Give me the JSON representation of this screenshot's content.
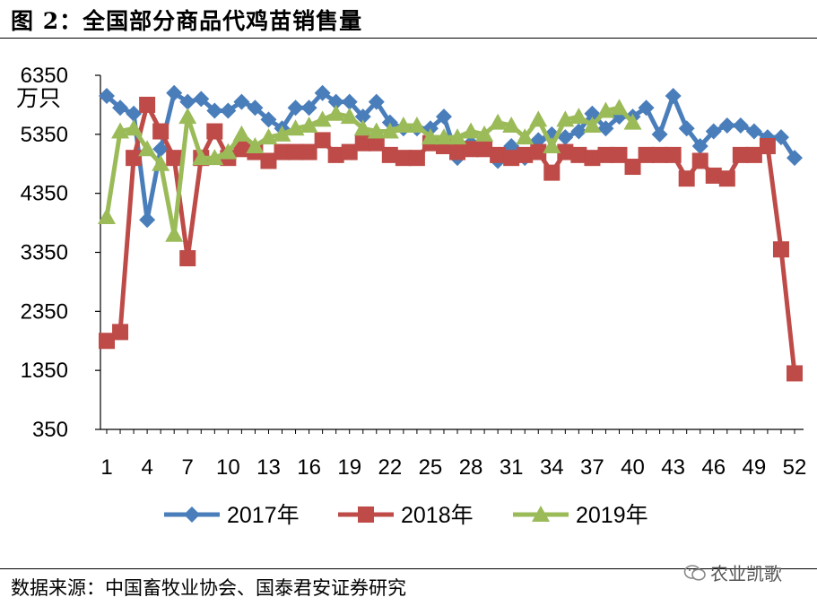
{
  "header": {
    "title": "图 2：全国部分商品代鸡苗销售量"
  },
  "footer": {
    "source": "数据来源：中国畜牧业协会、国泰君安证券研究"
  },
  "watermark": {
    "text": "农业凯歌",
    "icon": "wechat-icon"
  },
  "chart_data": {
    "type": "line",
    "title": "",
    "xlabel": "",
    "ylabel": "万只",
    "ylim": [
      350,
      6350
    ],
    "yticks": [
      350,
      1350,
      2350,
      3350,
      4350,
      5350,
      6350
    ],
    "xlim": [
      1,
      52
    ],
    "xticks": [
      1,
      4,
      7,
      10,
      13,
      16,
      19,
      22,
      25,
      28,
      31,
      34,
      37,
      40,
      43,
      46,
      49,
      52
    ],
    "grid": false,
    "legend_position": "bottom",
    "series": [
      {
        "name": "2017年",
        "color": "#4a7ebb",
        "marker": "diamond",
        "x": [
          1,
          2,
          3,
          4,
          5,
          6,
          7,
          8,
          9,
          10,
          11,
          12,
          13,
          14,
          15,
          16,
          17,
          18,
          19,
          20,
          21,
          22,
          23,
          24,
          25,
          26,
          27,
          28,
          29,
          30,
          31,
          32,
          33,
          34,
          35,
          36,
          37,
          38,
          39,
          40,
          41,
          42,
          43,
          44,
          45,
          46,
          47,
          48,
          49,
          50,
          51,
          52
        ],
        "values": [
          6000,
          5800,
          5700,
          3900,
          5100,
          6050,
          5900,
          5950,
          5750,
          5750,
          5900,
          5800,
          5600,
          5450,
          5800,
          5800,
          6050,
          5900,
          5900,
          5650,
          5900,
          5550,
          5450,
          5450,
          5450,
          5650,
          4950,
          5200,
          5250,
          4900,
          5150,
          4950,
          5250,
          5350,
          5300,
          5400,
          5700,
          5450,
          5650,
          5650,
          5800,
          5350,
          6000,
          5450,
          5150,
          5400,
          5500,
          5500,
          5400,
          5300,
          5300,
          4950
        ]
      },
      {
        "name": "2018年",
        "color": "#be4b48",
        "marker": "square",
        "x": [
          1,
          2,
          3,
          4,
          5,
          6,
          7,
          8,
          9,
          10,
          11,
          12,
          13,
          14,
          15,
          16,
          17,
          18,
          19,
          20,
          21,
          22,
          23,
          24,
          25,
          26,
          27,
          28,
          29,
          30,
          31,
          32,
          33,
          34,
          35,
          36,
          37,
          38,
          39,
          40,
          41,
          42,
          43,
          44,
          45,
          46,
          47,
          48,
          49,
          50,
          51,
          52
        ],
        "values": [
          1850,
          2000,
          4950,
          5850,
          5400,
          4950,
          3250,
          4950,
          5400,
          4950,
          5100,
          5050,
          4900,
          5050,
          5050,
          5050,
          5250,
          5000,
          5050,
          5200,
          5200,
          5000,
          4950,
          4950,
          5200,
          5150,
          5050,
          5100,
          5100,
          5000,
          4950,
          5000,
          5050,
          4700,
          5050,
          5000,
          4950,
          5000,
          5000,
          4800,
          5000,
          5000,
          5000,
          4600,
          4900,
          4650,
          4600,
          5000,
          5000,
          5150,
          3400,
          1300
        ]
      },
      {
        "name": "2019年",
        "color": "#9bbb59",
        "marker": "triangle",
        "x": [
          1,
          2,
          3,
          4,
          5,
          6,
          7,
          8,
          9,
          10,
          11,
          12,
          13,
          14,
          15,
          16,
          17,
          18,
          19,
          20,
          21,
          22,
          23,
          24,
          25,
          26,
          27,
          28,
          29,
          30,
          31,
          32,
          33,
          34,
          35,
          36,
          37,
          38,
          39,
          40
        ],
        "values": [
          3950,
          5400,
          5450,
          5100,
          4850,
          3650,
          5650,
          4950,
          4950,
          5050,
          5350,
          5150,
          5300,
          5350,
          5450,
          5500,
          5600,
          5700,
          5650,
          5450,
          5400,
          5400,
          5500,
          5500,
          5300,
          5300,
          5300,
          5400,
          5350,
          5550,
          5500,
          5300,
          5600,
          5150,
          5600,
          5650,
          5500,
          5750,
          5800,
          5550
        ]
      }
    ]
  }
}
